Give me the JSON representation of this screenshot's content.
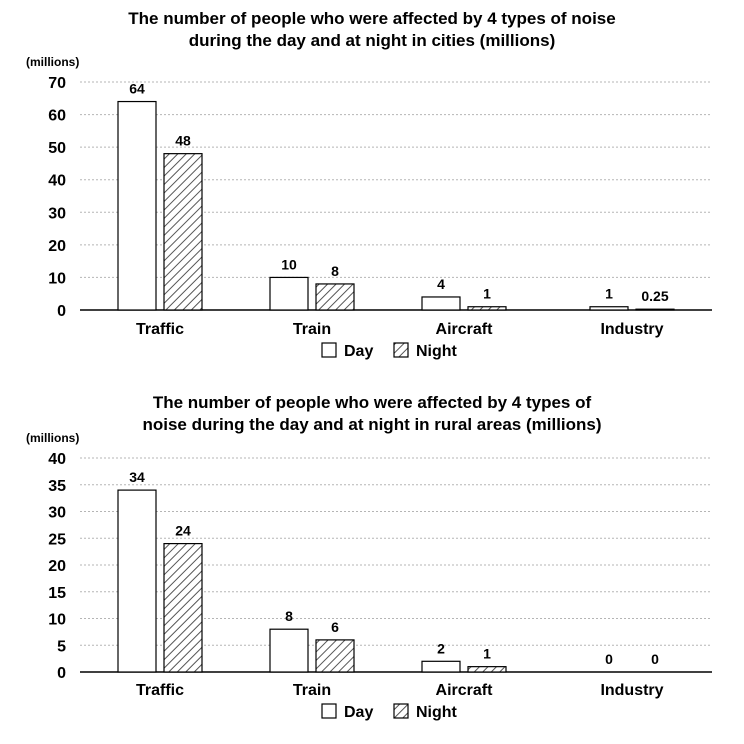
{
  "chart_data": [
    {
      "type": "bar",
      "title_line1": "The number of people who were affected by 4 types of noise",
      "title_line2": "during the day and at night in cities (millions)",
      "ylabel": "(millions)",
      "ylim": [
        0,
        70
      ],
      "yticks": [
        0,
        10,
        20,
        30,
        40,
        50,
        60,
        70
      ],
      "grid": true,
      "legend_position": "bottom-center",
      "categories": [
        "Traffic",
        "Train",
        "Aircraft",
        "Industry"
      ],
      "series": [
        {
          "name": "Day",
          "values": [
            64,
            10,
            4,
            1
          ],
          "labels": [
            "64",
            "10",
            "4",
            "1"
          ],
          "pattern": "none"
        },
        {
          "name": "Night",
          "values": [
            48,
            8,
            1,
            0.25
          ],
          "labels": [
            "48",
            "8",
            "1",
            "0.25"
          ],
          "pattern": "hatch"
        }
      ]
    },
    {
      "type": "bar",
      "title_line1": "The number of people who were affected by 4 types of",
      "title_line2": "noise during the day and at night in rural areas (millions)",
      "ylabel": "(millions)",
      "ylim": [
        0,
        40
      ],
      "yticks": [
        0,
        5,
        10,
        15,
        20,
        25,
        30,
        35,
        40
      ],
      "grid": true,
      "legend_position": "bottom-center",
      "categories": [
        "Traffic",
        "Train",
        "Aircraft",
        "Industry"
      ],
      "series": [
        {
          "name": "Day",
          "values": [
            34,
            8,
            2,
            0
          ],
          "labels": [
            "34",
            "8",
            "2",
            "0"
          ],
          "pattern": "none"
        },
        {
          "name": "Night",
          "values": [
            24,
            6,
            1,
            0
          ],
          "labels": [
            "24",
            "6",
            "1",
            "0"
          ],
          "pattern": "hatch"
        }
      ]
    }
  ]
}
